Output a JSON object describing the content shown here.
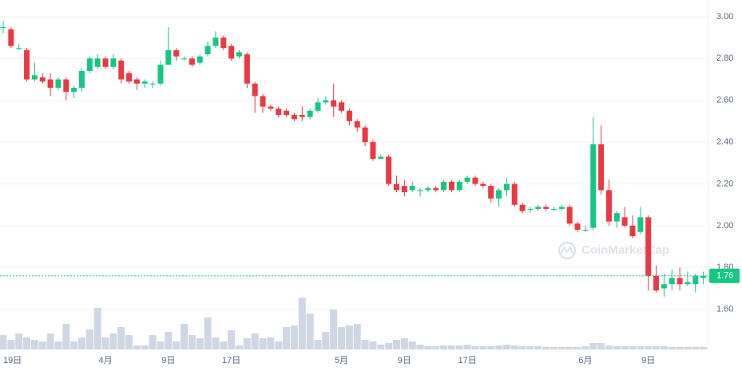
{
  "chart_data": {
    "type": "candlestick",
    "watermark": "CoinMarketCap",
    "x": [
      "19日",
      null,
      null,
      null,
      null,
      null,
      null,
      null,
      null,
      null,
      null,
      null,
      null,
      "4月",
      null,
      null,
      null,
      null,
      null,
      null,
      null,
      "9日",
      null,
      null,
      null,
      null,
      null,
      null,
      null,
      "17日",
      null,
      null,
      null,
      null,
      null,
      null,
      null,
      null,
      null,
      null,
      null,
      null,
      null,
      "5月",
      null,
      null,
      null,
      null,
      null,
      null,
      null,
      "9日",
      null,
      null,
      null,
      null,
      null,
      null,
      null,
      "17日",
      null,
      null,
      null,
      null,
      null,
      null,
      null,
      null,
      null,
      null,
      null,
      null,
      null,
      null,
      "6月",
      null,
      null,
      null,
      null,
      null,
      null,
      null,
      "9日",
      null,
      null,
      null,
      null,
      null,
      null,
      null
    ],
    "open": [
      2.95,
      2.94,
      2.85,
      2.84,
      2.7,
      2.71,
      2.7,
      2.66,
      2.7,
      2.64,
      2.66,
      2.74,
      2.76,
      2.8,
      2.76,
      2.79,
      2.73,
      2.7,
      2.68,
      2.68,
      2.68,
      2.77,
      2.84,
      2.8,
      2.8,
      2.78,
      2.82,
      2.86,
      2.9,
      2.86,
      2.81,
      2.82,
      2.68,
      2.62,
      2.57,
      2.56,
      2.55,
      2.53,
      2.53,
      2.52,
      2.55,
      2.59,
      2.6,
      2.59,
      2.55,
      2.5,
      2.47,
      2.4,
      2.32,
      2.33,
      2.2,
      2.19,
      2.17,
      2.17,
      2.17,
      2.18,
      2.17,
      2.21,
      2.17,
      2.21,
      2.23,
      2.2,
      2.19,
      2.13,
      2.17,
      2.2,
      2.1,
      2.08,
      2.08,
      2.09,
      2.08,
      2.08,
      2.09,
      2.01,
      1.98,
      1.99,
      2.39,
      2.17,
      2.02,
      2.04,
      2.0,
      1.97,
      2.04,
      1.76,
      1.7,
      1.72,
      1.75,
      1.72,
      1.72,
      1.75
    ],
    "high": [
      2.98,
      2.95,
      2.87,
      2.85,
      2.78,
      2.73,
      2.73,
      2.71,
      2.71,
      2.67,
      2.75,
      2.81,
      2.82,
      2.81,
      2.82,
      2.8,
      2.74,
      2.71,
      2.7,
      2.69,
      2.79,
      2.95,
      2.85,
      2.81,
      2.81,
      2.82,
      2.88,
      2.93,
      2.91,
      2.87,
      2.84,
      2.83,
      2.69,
      2.63,
      2.58,
      2.57,
      2.56,
      2.54,
      2.57,
      2.56,
      2.61,
      2.62,
      2.68,
      2.6,
      2.56,
      2.51,
      2.48,
      2.41,
      2.34,
      2.34,
      2.24,
      2.22,
      2.21,
      2.18,
      2.19,
      2.19,
      2.22,
      2.22,
      2.22,
      2.24,
      2.24,
      2.21,
      2.2,
      2.18,
      2.23,
      2.21,
      2.11,
      2.09,
      2.1,
      2.1,
      2.09,
      2.1,
      2.1,
      2.02,
      2.0,
      2.52,
      2.48,
      2.22,
      2.07,
      2.09,
      2.05,
      2.09,
      2.05,
      1.81,
      1.77,
      1.79,
      1.8,
      1.78,
      1.77,
      1.78
    ],
    "low": [
      2.92,
      2.85,
      2.84,
      2.69,
      2.69,
      2.68,
      2.62,
      2.65,
      2.6,
      2.61,
      2.64,
      2.73,
      2.75,
      2.75,
      2.75,
      2.68,
      2.68,
      2.65,
      2.66,
      2.66,
      2.67,
      2.77,
      2.79,
      2.79,
      2.76,
      2.77,
      2.81,
      2.85,
      2.84,
      2.79,
      2.8,
      2.66,
      2.54,
      2.54,
      2.55,
      2.52,
      2.52,
      2.5,
      2.5,
      2.51,
      2.54,
      2.58,
      2.52,
      2.54,
      2.48,
      2.45,
      2.38,
      2.31,
      2.32,
      2.19,
      2.16,
      2.14,
      2.16,
      2.14,
      2.16,
      2.16,
      2.16,
      2.16,
      2.16,
      2.2,
      2.19,
      2.18,
      2.11,
      2.09,
      2.14,
      2.09,
      2.06,
      2.06,
      2.07,
      2.07,
      2.07,
      2.07,
      2.0,
      1.97,
      1.97,
      1.98,
      2.15,
      2.0,
      1.99,
      1.99,
      1.94,
      1.96,
      1.69,
      1.68,
      1.66,
      1.69,
      1.69,
      1.71,
      1.68,
      1.72
    ],
    "close": [
      2.95,
      2.86,
      2.85,
      2.7,
      2.72,
      2.69,
      2.66,
      2.7,
      2.64,
      2.66,
      2.74,
      2.8,
      2.8,
      2.76,
      2.8,
      2.7,
      2.69,
      2.68,
      2.69,
      2.68,
      2.77,
      2.84,
      2.81,
      2.8,
      2.77,
      2.81,
      2.86,
      2.9,
      2.85,
      2.8,
      2.83,
      2.68,
      2.62,
      2.57,
      2.56,
      2.53,
      2.53,
      2.51,
      2.52,
      2.55,
      2.59,
      2.6,
      2.57,
      2.55,
      2.5,
      2.47,
      2.4,
      2.32,
      2.33,
      2.2,
      2.17,
      2.16,
      2.19,
      2.17,
      2.18,
      2.17,
      2.21,
      2.17,
      2.21,
      2.23,
      2.2,
      2.19,
      2.13,
      2.17,
      2.2,
      2.1,
      2.07,
      2.08,
      2.09,
      2.08,
      2.08,
      2.09,
      2.01,
      1.98,
      1.98,
      2.39,
      2.17,
      2.02,
      2.06,
      2.0,
      1.95,
      2.04,
      1.76,
      1.69,
      1.72,
      1.75,
      1.72,
      1.73,
      1.76,
      1.76
    ],
    "volume": [
      18,
      12,
      20,
      15,
      12,
      10,
      20,
      10,
      32,
      10,
      15,
      25,
      52,
      15,
      20,
      28,
      18,
      5,
      5,
      18,
      10,
      22,
      10,
      32,
      18,
      14,
      40,
      15,
      10,
      24,
      5,
      14,
      20,
      14,
      15,
      10,
      28,
      30,
      65,
      45,
      12,
      22,
      50,
      28,
      30,
      32,
      12,
      10,
      6,
      8,
      12,
      14,
      10,
      6,
      4,
      4,
      5,
      5,
      5,
      6,
      4,
      4,
      4,
      5,
      6,
      5,
      4,
      4,
      4,
      3,
      3,
      3,
      3,
      3,
      4,
      8,
      8,
      5,
      4,
      4,
      4,
      4,
      4,
      4,
      4,
      3,
      3,
      3,
      3,
      3
    ],
    "up_color": "#16c784",
    "down_color": "#ea3943",
    "volume_color": "#cfd6e4",
    "ylim": [
      1.4,
      3.08
    ],
    "yticks": [
      {
        "value": 1.6,
        "label": "1.60"
      },
      {
        "value": 1.8,
        "label": "1.80"
      },
      {
        "value": 2.0,
        "label": "2.00"
      },
      {
        "value": 2.2,
        "label": "2.20"
      },
      {
        "value": 2.4,
        "label": "2.40"
      },
      {
        "value": 2.6,
        "label": "2.60"
      },
      {
        "value": 2.8,
        "label": "2.80"
      },
      {
        "value": 3.0,
        "label": "3.00"
      }
    ],
    "grid": true,
    "current_price": {
      "value": 1.76,
      "label": "1.76"
    }
  }
}
